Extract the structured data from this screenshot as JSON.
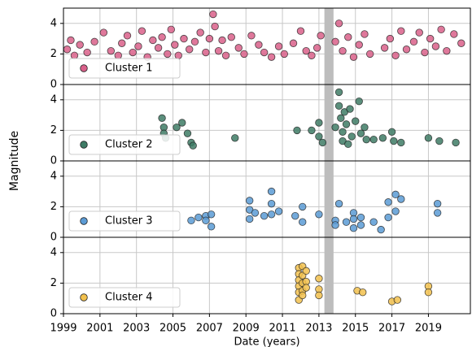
{
  "chart_data": [
    {
      "type": "scatter",
      "ylim": [
        0,
        5
      ],
      "yticks": [
        0,
        2,
        4
      ],
      "grid": true,
      "span": [
        2013.3,
        2013.8
      ],
      "legend": "lower left",
      "series": [
        {
          "name": "Cluster 1",
          "color": "#d9608a",
          "x": [
            1999.2,
            1999.4,
            1999.6,
            1999.9,
            2000.3,
            2000.7,
            2001.2,
            2001.6,
            2002.0,
            2002.2,
            2002.5,
            2002.8,
            2003.1,
            2003.3,
            2003.6,
            2003.9,
            2004.2,
            2004.4,
            2004.7,
            2004.9,
            2005.1,
            2005.3,
            2005.6,
            2005.9,
            2006.2,
            2006.5,
            2006.8,
            2007.0,
            2007.2,
            2007.3,
            2007.5,
            2007.7,
            2007.9,
            2008.2,
            2008.6,
            2008.9,
            2009.3,
            2009.7,
            2010.0,
            2010.4,
            2010.8,
            2011.1,
            2011.6,
            2012.0,
            2012.3,
            2012.6,
            2012.9,
            2013.1,
            2013.9,
            2014.1,
            2014.3,
            2014.6,
            2014.9,
            2015.2,
            2015.5,
            2015.8,
            2016.6,
            2016.9,
            2017.2,
            2017.5,
            2017.8,
            2018.2,
            2018.5,
            2018.8,
            2019.1,
            2019.4,
            2019.7,
            2020.0,
            2020.4,
            2020.8
          ],
          "values": [
            2.3,
            2.9,
            1.9,
            2.6,
            2.1,
            2.8,
            3.4,
            2.2,
            1.9,
            2.7,
            3.2,
            2.1,
            2.5,
            3.5,
            1.8,
            2.9,
            2.4,
            3.1,
            2.0,
            3.6,
            2.6,
            1.9,
            3.0,
            2.3,
            2.8,
            3.4,
            2.1,
            3.0,
            4.6,
            3.8,
            2.2,
            2.9,
            1.9,
            3.1,
            2.4,
            2.0,
            3.2,
            2.6,
            2.1,
            1.8,
            2.5,
            2.0,
            2.7,
            3.5,
            2.2,
            1.9,
            2.4,
            3.2,
            2.8,
            4.0,
            2.2,
            3.1,
            1.8,
            2.6,
            3.3,
            2.0,
            2.4,
            3.0,
            1.9,
            3.5,
            2.3,
            2.8,
            3.4,
            2.1,
            3.0,
            2.5,
            3.6,
            2.2,
            3.3,
            2.7
          ]
        }
      ]
    },
    {
      "type": "scatter",
      "ylim": [
        0,
        5
      ],
      "yticks": [
        0,
        2,
        4
      ],
      "grid": true,
      "span": [
        2013.3,
        2013.8
      ],
      "legend": "lower left",
      "ylabel": "Magnitude",
      "series": [
        {
          "name": "Cluster 2",
          "color": "#3e7b65",
          "x": [
            2004.4,
            2004.5,
            2004.5,
            2004.6,
            2005.2,
            2005.5,
            2005.8,
            2006.0,
            2006.1,
            2008.4,
            2011.8,
            2012.6,
            2013.0,
            2013.0,
            2013.2,
            2013.9,
            2014.1,
            2014.1,
            2014.2,
            2014.3,
            2014.3,
            2014.4,
            2014.5,
            2014.6,
            2014.7,
            2014.8,
            2015.0,
            2015.2,
            2015.3,
            2015.5,
            2015.6,
            2016.0,
            2016.5,
            2017.0,
            2017.1,
            2017.5,
            2019.0,
            2019.6,
            2020.5
          ],
          "values": [
            2.8,
            2.2,
            1.8,
            1.5,
            2.2,
            2.5,
            1.8,
            1.2,
            1.0,
            1.5,
            2.0,
            2.0,
            2.5,
            1.6,
            1.2,
            2.2,
            4.5,
            3.6,
            2.8,
            1.9,
            1.3,
            3.2,
            2.4,
            1.1,
            3.4,
            1.6,
            2.6,
            3.9,
            1.8,
            2.2,
            1.4,
            1.4,
            1.5,
            1.9,
            1.3,
            1.2,
            1.5,
            1.3,
            1.2
          ]
        }
      ]
    },
    {
      "type": "scatter",
      "ylim": [
        0,
        5
      ],
      "yticks": [
        0,
        2,
        4
      ],
      "grid": true,
      "span": [
        2013.3,
        2013.8
      ],
      "legend": "lower left",
      "series": [
        {
          "name": "Cluster 3",
          "color": "#5b9bd5",
          "x": [
            2006.0,
            2006.4,
            2006.8,
            2006.8,
            2007.1,
            2007.1,
            2009.2,
            2009.2,
            2009.2,
            2009.5,
            2010.0,
            2010.4,
            2010.4,
            2010.4,
            2010.8,
            2011.7,
            2012.1,
            2012.1,
            2013.0,
            2013.9,
            2013.9,
            2014.1,
            2014.5,
            2014.9,
            2014.9,
            2014.9,
            2015.3,
            2015.3,
            2016.0,
            2016.4,
            2016.8,
            2016.8,
            2017.2,
            2017.2,
            2017.5,
            2019.5,
            2019.5
          ],
          "values": [
            1.1,
            1.3,
            1.4,
            1.1,
            1.5,
            0.7,
            2.4,
            1.8,
            1.2,
            1.6,
            1.4,
            3.0,
            2.2,
            1.5,
            1.7,
            1.4,
            2.0,
            1.0,
            1.5,
            1.1,
            0.8,
            2.2,
            1.0,
            1.6,
            1.2,
            0.6,
            1.3,
            0.8,
            1.0,
            0.5,
            2.3,
            1.3,
            2.8,
            1.7,
            2.5,
            2.2,
            1.6
          ]
        }
      ]
    },
    {
      "type": "scatter",
      "ylim": [
        0,
        5
      ],
      "yticks": [
        0,
        2,
        4
      ],
      "grid": true,
      "span": [
        2013.3,
        2013.8
      ],
      "legend": "lower left",
      "xlim": [
        1999,
        2021.3
      ],
      "xticks": [
        1999,
        2001,
        2003,
        2005,
        2007,
        2009,
        2011,
        2013,
        2015,
        2017,
        2019
      ],
      "xlabel": "Date (years)",
      "series": [
        {
          "name": "Cluster 4",
          "color": "#f2c14e",
          "x": [
            2011.9,
            2011.9,
            2011.9,
            2011.9,
            2011.9,
            2011.9,
            2012.1,
            2012.1,
            2012.1,
            2012.1,
            2012.1,
            2012.3,
            2012.3,
            2012.3,
            2013.0,
            2013.0,
            2013.0,
            2015.1,
            2015.4,
            2017.0,
            2017.3,
            2019.0,
            2019.0
          ],
          "values": [
            3.0,
            2.6,
            2.2,
            1.8,
            1.4,
            0.9,
            3.1,
            2.5,
            2.0,
            1.5,
            1.2,
            2.8,
            2.1,
            1.7,
            2.3,
            1.6,
            1.2,
            1.5,
            1.4,
            0.8,
            0.9,
            1.8,
            1.4
          ]
        }
      ]
    }
  ]
}
